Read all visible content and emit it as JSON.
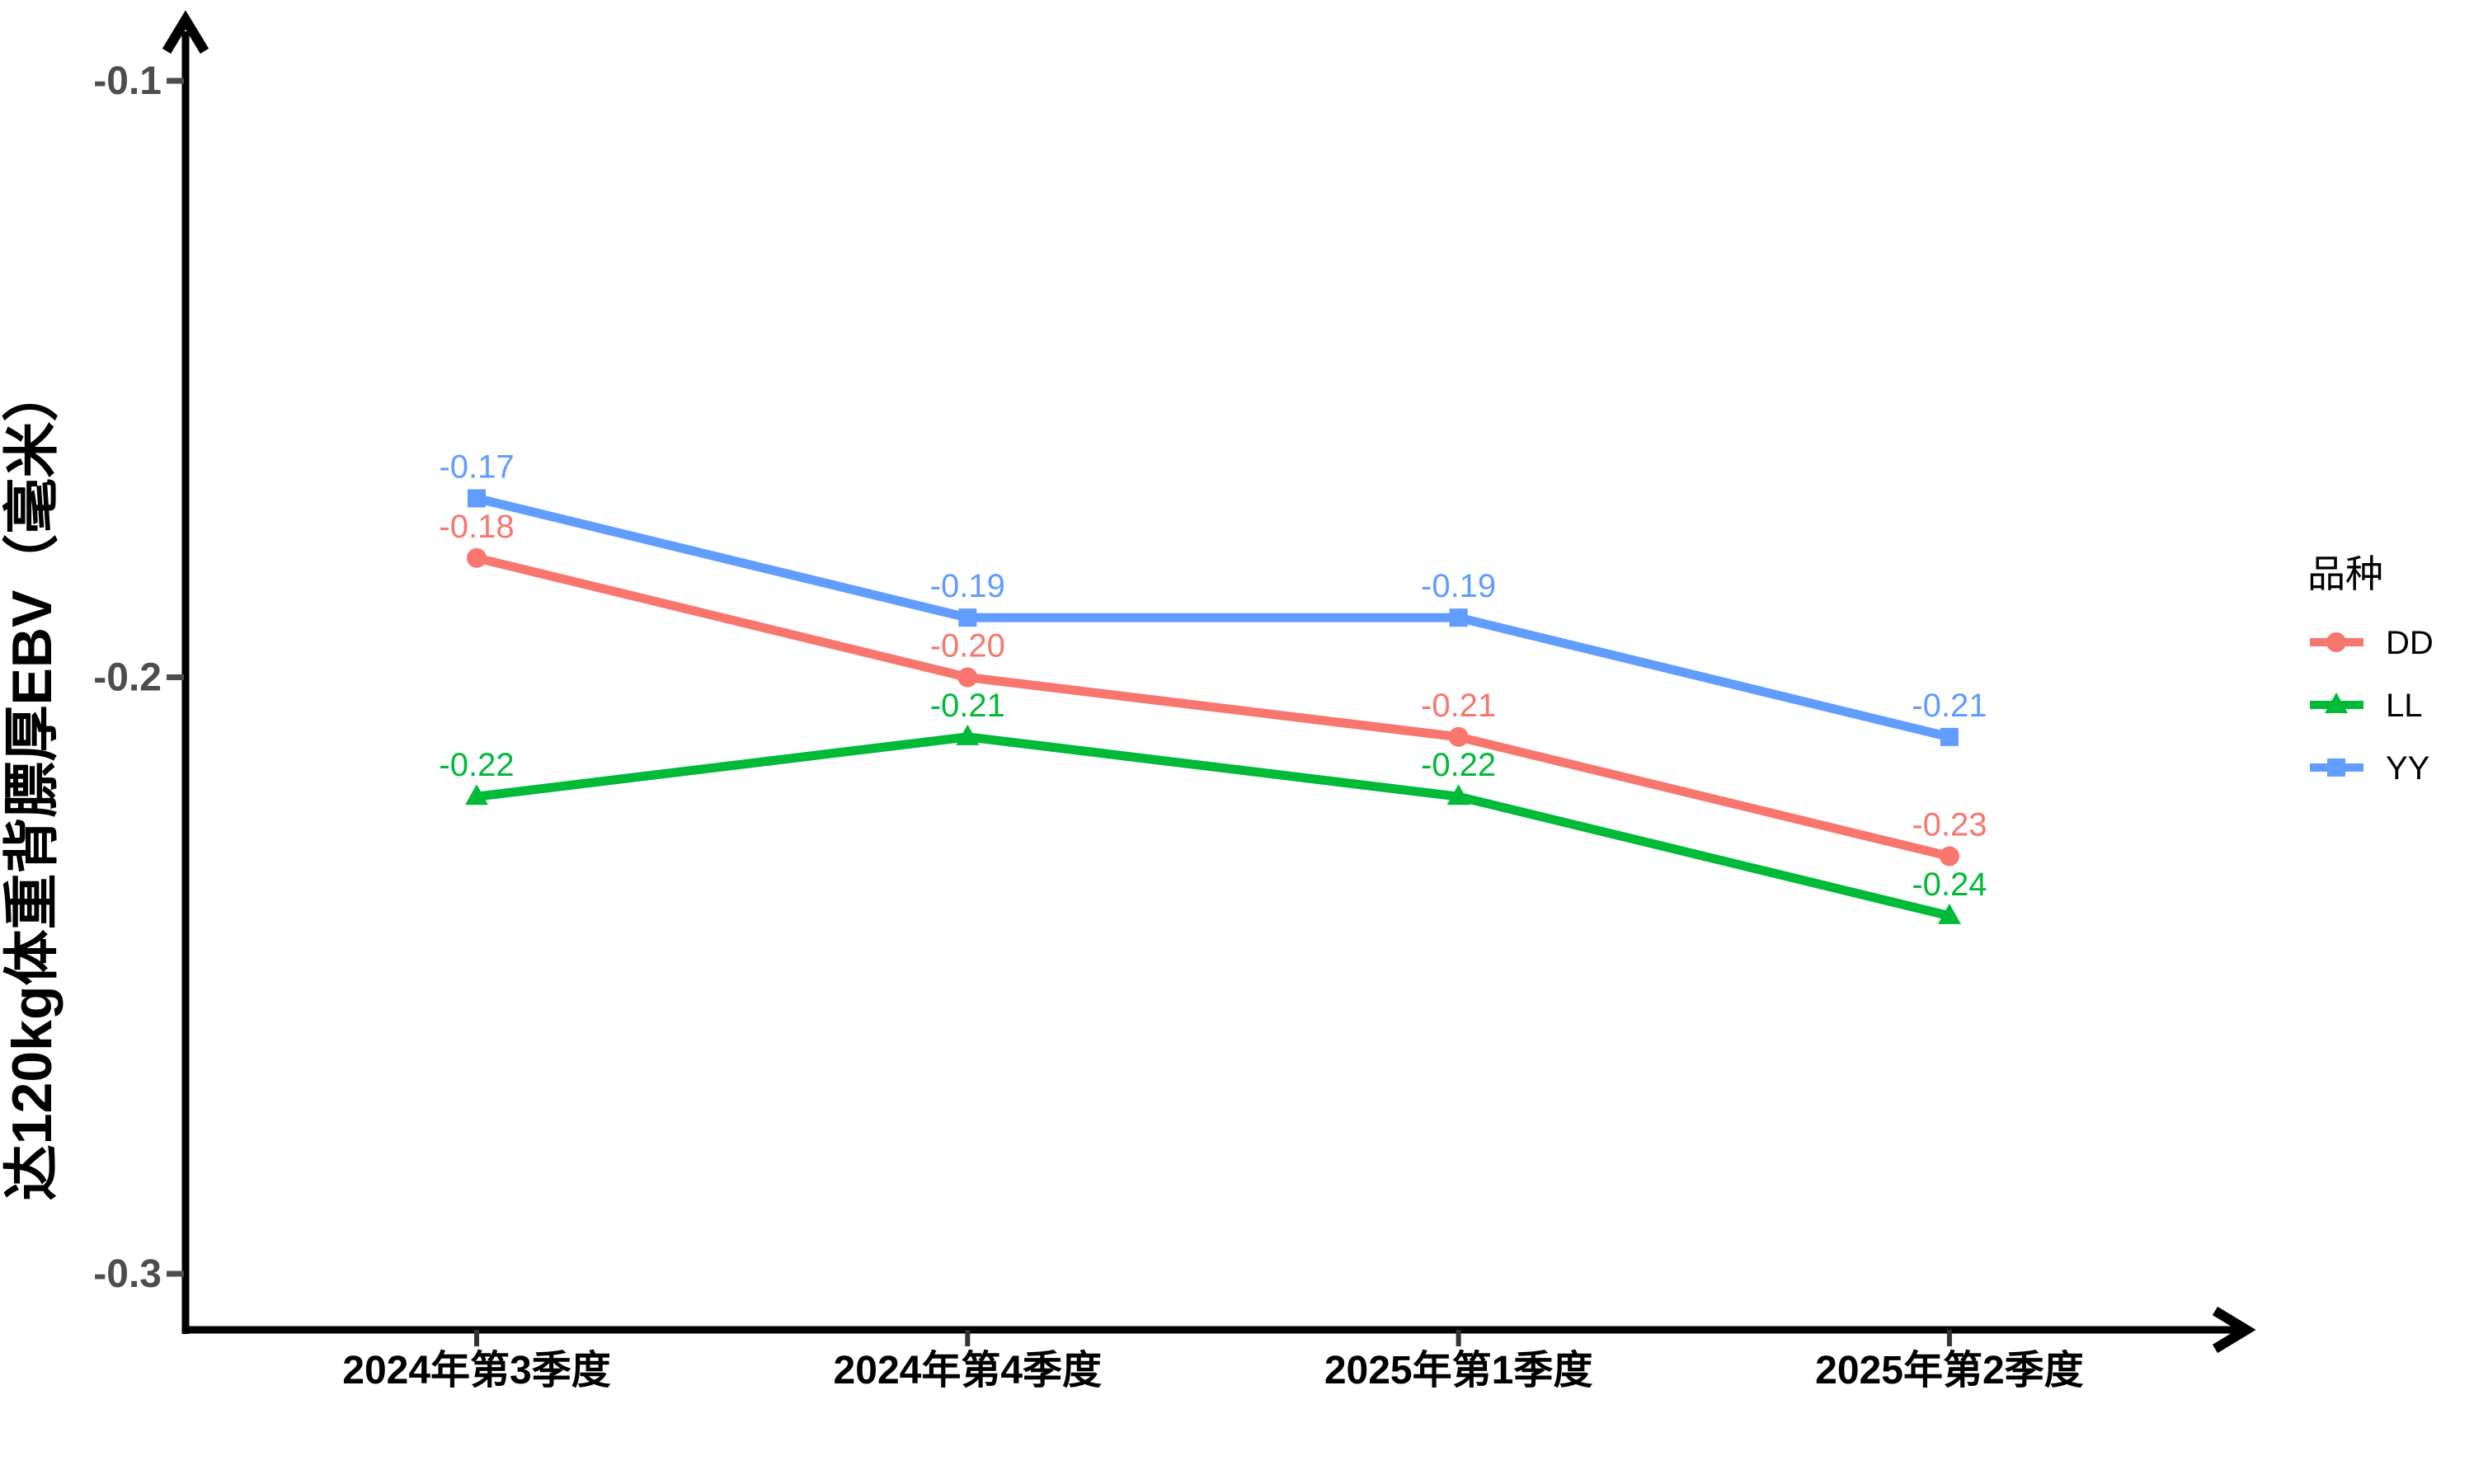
{
  "chart_data": {
    "type": "line",
    "title": "",
    "xlabel": "",
    "ylabel": "达120kg体重背膘厚EBV（毫米）",
    "categories": [
      "2024年第3季度",
      "2024年第4季度",
      "2025年第1季度",
      "2025年第2季度"
    ],
    "series": [
      {
        "name": "DD",
        "marker": "circle",
        "color": "#F8766D",
        "values": [
          -0.18,
          -0.2,
          -0.21,
          -0.23
        ],
        "labels": [
          "-0.18",
          "-0.20",
          "-0.21",
          "-0.23"
        ]
      },
      {
        "name": "LL",
        "marker": "triangle",
        "color": "#00BA38",
        "values": [
          -0.22,
          -0.21,
          -0.22,
          -0.24
        ],
        "labels": [
          "-0.22",
          "-0.21",
          "-0.22",
          "-0.24"
        ]
      },
      {
        "name": "YY",
        "marker": "square",
        "color": "#619CFF",
        "values": [
          -0.17,
          -0.19,
          -0.19,
          -0.21
        ],
        "labels": [
          "-0.17",
          "-0.19",
          "-0.19",
          "-0.21"
        ]
      }
    ],
    "y_ticks": [
      {
        "label": "-0.1",
        "value": -0.1
      },
      {
        "label": "-0.2",
        "value": -0.2
      },
      {
        "label": "-0.3",
        "value": -0.3
      }
    ],
    "ylim": [
      -0.31,
      -0.09
    ],
    "grid": false,
    "legend": {
      "title": "品种",
      "position": "right",
      "entries": [
        "DD",
        "LL",
        "YY"
      ]
    },
    "colors": {
      "axis": "#000000",
      "y_tick_label": "#4d4d4d",
      "x_tick_label": "#000000",
      "legend_text": "#000000"
    }
  }
}
